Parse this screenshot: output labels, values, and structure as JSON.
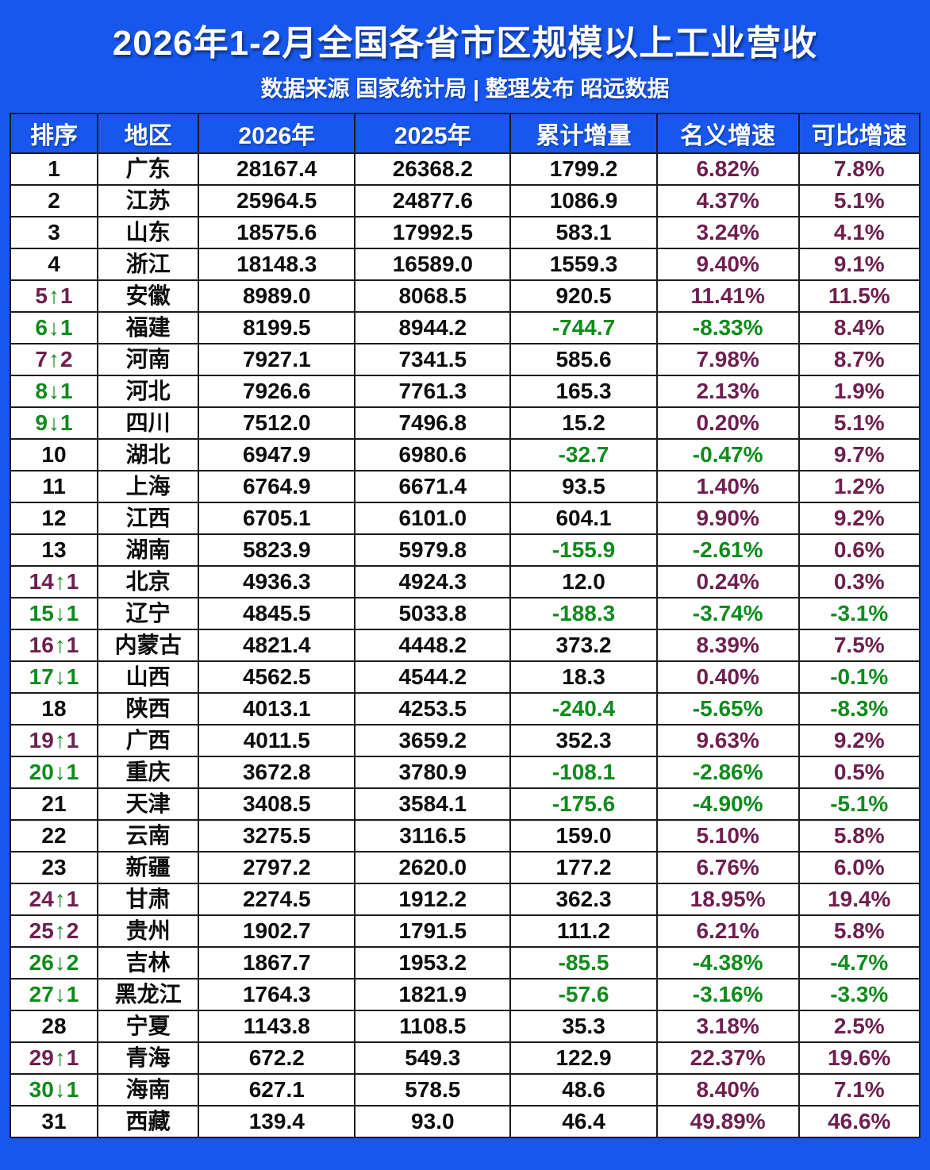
{
  "title": "2026年1-2月全国各省市区规模以上工业营收",
  "subtitle": "数据来源 国家统计局 | 整理发布 昭远数据",
  "icons": {
    "up": "↑",
    "down": "↓"
  },
  "colors": {
    "blue": "#1757ee",
    "maroon": "#6e1f4e",
    "green": "#0f8b1c",
    "ink": "#0d0d0d",
    "border": "#1c1c1c",
    "white": "#ffffff"
  },
  "chart_data": {
    "type": "table",
    "title": "2026年1-2月全国各省市区规模以上工业营收",
    "columns": [
      "排序",
      "地区",
      "2026年",
      "2025年",
      "累计增量",
      "名义增速",
      "可比增速"
    ],
    "rows": [
      {
        "rank": "1",
        "dir": "",
        "change": "",
        "region": "广东",
        "y2026": "28167.4",
        "y2025": "26368.2",
        "delta": "1799.2",
        "nominal": "6.82%",
        "comparable": "7.8%"
      },
      {
        "rank": "2",
        "dir": "",
        "change": "",
        "region": "江苏",
        "y2026": "25964.5",
        "y2025": "24877.6",
        "delta": "1086.9",
        "nominal": "4.37%",
        "comparable": "5.1%"
      },
      {
        "rank": "3",
        "dir": "",
        "change": "",
        "region": "山东",
        "y2026": "18575.6",
        "y2025": "17992.5",
        "delta": "583.1",
        "nominal": "3.24%",
        "comparable": "4.1%"
      },
      {
        "rank": "4",
        "dir": "",
        "change": "",
        "region": "浙江",
        "y2026": "18148.3",
        "y2025": "16589.0",
        "delta": "1559.3",
        "nominal": "9.40%",
        "comparable": "9.1%"
      },
      {
        "rank": "5",
        "dir": "up",
        "change": "1",
        "region": "安徽",
        "y2026": "8989.0",
        "y2025": "8068.5",
        "delta": "920.5",
        "nominal": "11.41%",
        "comparable": "11.5%"
      },
      {
        "rank": "6",
        "dir": "down",
        "change": "1",
        "region": "福建",
        "y2026": "8199.5",
        "y2025": "8944.2",
        "delta": "-744.7",
        "nominal": "-8.33%",
        "comparable": "8.4%"
      },
      {
        "rank": "7",
        "dir": "up",
        "change": "2",
        "region": "河南",
        "y2026": "7927.1",
        "y2025": "7341.5",
        "delta": "585.6",
        "nominal": "7.98%",
        "comparable": "8.7%"
      },
      {
        "rank": "8",
        "dir": "down",
        "change": "1",
        "region": "河北",
        "y2026": "7926.6",
        "y2025": "7761.3",
        "delta": "165.3",
        "nominal": "2.13%",
        "comparable": "1.9%"
      },
      {
        "rank": "9",
        "dir": "down",
        "change": "1",
        "region": "四川",
        "y2026": "7512.0",
        "y2025": "7496.8",
        "delta": "15.2",
        "nominal": "0.20%",
        "comparable": "5.1%"
      },
      {
        "rank": "10",
        "dir": "",
        "change": "",
        "region": "湖北",
        "y2026": "6947.9",
        "y2025": "6980.6",
        "delta": "-32.7",
        "nominal": "-0.47%",
        "comparable": "9.7%"
      },
      {
        "rank": "11",
        "dir": "",
        "change": "",
        "region": "上海",
        "y2026": "6764.9",
        "y2025": "6671.4",
        "delta": "93.5",
        "nominal": "1.40%",
        "comparable": "1.2%"
      },
      {
        "rank": "12",
        "dir": "",
        "change": "",
        "region": "江西",
        "y2026": "6705.1",
        "y2025": "6101.0",
        "delta": "604.1",
        "nominal": "9.90%",
        "comparable": "9.2%"
      },
      {
        "rank": "13",
        "dir": "",
        "change": "",
        "region": "湖南",
        "y2026": "5823.9",
        "y2025": "5979.8",
        "delta": "-155.9",
        "nominal": "-2.61%",
        "comparable": "0.6%"
      },
      {
        "rank": "14",
        "dir": "up",
        "change": "1",
        "region": "北京",
        "y2026": "4936.3",
        "y2025": "4924.3",
        "delta": "12.0",
        "nominal": "0.24%",
        "comparable": "0.3%"
      },
      {
        "rank": "15",
        "dir": "down",
        "change": "1",
        "region": "辽宁",
        "y2026": "4845.5",
        "y2025": "5033.8",
        "delta": "-188.3",
        "nominal": "-3.74%",
        "comparable": "-3.1%"
      },
      {
        "rank": "16",
        "dir": "up",
        "change": "1",
        "region": "内蒙古",
        "y2026": "4821.4",
        "y2025": "4448.2",
        "delta": "373.2",
        "nominal": "8.39%",
        "comparable": "7.5%"
      },
      {
        "rank": "17",
        "dir": "down",
        "change": "1",
        "region": "山西",
        "y2026": "4562.5",
        "y2025": "4544.2",
        "delta": "18.3",
        "nominal": "0.40%",
        "comparable": "-0.1%"
      },
      {
        "rank": "18",
        "dir": "",
        "change": "",
        "region": "陕西",
        "y2026": "4013.1",
        "y2025": "4253.5",
        "delta": "-240.4",
        "nominal": "-5.65%",
        "comparable": "-8.3%"
      },
      {
        "rank": "19",
        "dir": "up",
        "change": "1",
        "region": "广西",
        "y2026": "4011.5",
        "y2025": "3659.2",
        "delta": "352.3",
        "nominal": "9.63%",
        "comparable": "9.2%"
      },
      {
        "rank": "20",
        "dir": "down",
        "change": "1",
        "region": "重庆",
        "y2026": "3672.8",
        "y2025": "3780.9",
        "delta": "-108.1",
        "nominal": "-2.86%",
        "comparable": "0.5%"
      },
      {
        "rank": "21",
        "dir": "",
        "change": "",
        "region": "天津",
        "y2026": "3408.5",
        "y2025": "3584.1",
        "delta": "-175.6",
        "nominal": "-4.90%",
        "comparable": "-5.1%"
      },
      {
        "rank": "22",
        "dir": "",
        "change": "",
        "region": "云南",
        "y2026": "3275.5",
        "y2025": "3116.5",
        "delta": "159.0",
        "nominal": "5.10%",
        "comparable": "5.8%"
      },
      {
        "rank": "23",
        "dir": "",
        "change": "",
        "region": "新疆",
        "y2026": "2797.2",
        "y2025": "2620.0",
        "delta": "177.2",
        "nominal": "6.76%",
        "comparable": "6.0%"
      },
      {
        "rank": "24",
        "dir": "up",
        "change": "1",
        "region": "甘肃",
        "y2026": "2274.5",
        "y2025": "1912.2",
        "delta": "362.3",
        "nominal": "18.95%",
        "comparable": "19.4%"
      },
      {
        "rank": "25",
        "dir": "up",
        "change": "2",
        "region": "贵州",
        "y2026": "1902.7",
        "y2025": "1791.5",
        "delta": "111.2",
        "nominal": "6.21%",
        "comparable": "5.8%"
      },
      {
        "rank": "26",
        "dir": "down",
        "change": "2",
        "region": "吉林",
        "y2026": "1867.7",
        "y2025": "1953.2",
        "delta": "-85.5",
        "nominal": "-4.38%",
        "comparable": "-4.7%"
      },
      {
        "rank": "27",
        "dir": "down",
        "change": "1",
        "region": "黑龙江",
        "y2026": "1764.3",
        "y2025": "1821.9",
        "delta": "-57.6",
        "nominal": "-3.16%",
        "comparable": "-3.3%"
      },
      {
        "rank": "28",
        "dir": "",
        "change": "",
        "region": "宁夏",
        "y2026": "1143.8",
        "y2025": "1108.5",
        "delta": "35.3",
        "nominal": "3.18%",
        "comparable": "2.5%"
      },
      {
        "rank": "29",
        "dir": "up",
        "change": "1",
        "region": "青海",
        "y2026": "672.2",
        "y2025": "549.3",
        "delta": "122.9",
        "nominal": "22.37%",
        "comparable": "19.6%"
      },
      {
        "rank": "30",
        "dir": "down",
        "change": "1",
        "region": "海南",
        "y2026": "627.1",
        "y2025": "578.5",
        "delta": "48.6",
        "nominal": "8.40%",
        "comparable": "7.1%"
      },
      {
        "rank": "31",
        "dir": "",
        "change": "",
        "region": "西藏",
        "y2026": "139.4",
        "y2025": "93.0",
        "delta": "46.4",
        "nominal": "49.89%",
        "comparable": "46.6%"
      }
    ]
  }
}
